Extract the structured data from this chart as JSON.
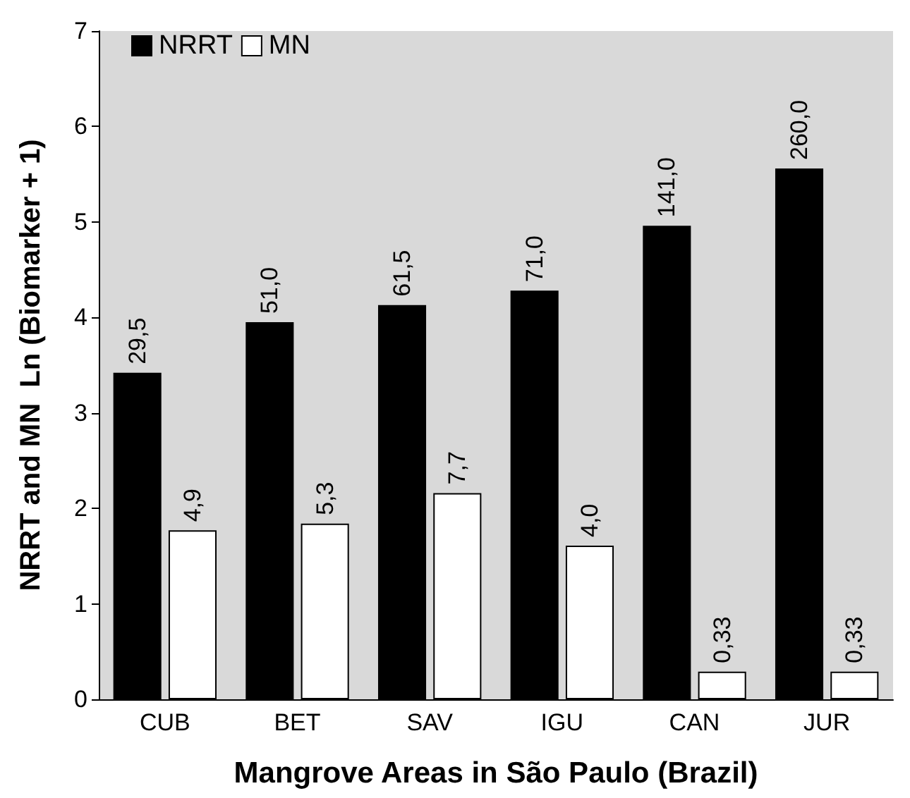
{
  "chart_data": {
    "type": "bar",
    "xlabel": "Mangrove Areas in São Paulo (Brazil)",
    "ylabel": "NRRT and MN  Ln (Biomarker + 1)",
    "categories": [
      "CUB",
      "BET",
      "SAV",
      "IGU",
      "CAN",
      "JUR"
    ],
    "series": [
      {
        "name": "NRRT",
        "color": "#000000",
        "values": [
          3.42,
          3.95,
          4.13,
          4.28,
          4.96,
          5.56
        ]
      },
      {
        "name": "MN",
        "color": "#ffffff",
        "values": [
          1.77,
          1.84,
          2.16,
          1.61,
          0.29,
          0.29
        ]
      }
    ],
    "annotations": [
      {
        "text": "29,5",
        "x": "CUB",
        "y": 3.42
      },
      {
        "text": "51,0",
        "x": "BET",
        "y": 3.95
      },
      {
        "text": "61,5",
        "x": "SAV",
        "y": 4.13
      },
      {
        "text": "71,0",
        "x": "IGU",
        "y": 4.28
      },
      {
        "text": "141,0",
        "x": "CAN",
        "y": 4.96
      },
      {
        "text": "260,0",
        "x": "JUR",
        "y": 5.56
      },
      {
        "text": "4,9",
        "x": "CUB",
        "y": 1.77
      },
      {
        "text": "5,3",
        "x": "BET",
        "y": 1.84
      },
      {
        "text": "7,7",
        "x": "SAV",
        "y": 2.16
      },
      {
        "text": "4,0",
        "x": "IGU",
        "y": 1.61
      },
      {
        "text": "0,33",
        "x": "CAN",
        "y": 0.29
      },
      {
        "text": "0,33",
        "x": "JUR",
        "y": 0.29
      }
    ],
    "ylim": [
      0,
      7
    ],
    "yticks": [
      0,
      1,
      2,
      3,
      4,
      5,
      6,
      7
    ],
    "grid": false,
    "legend": "top left"
  }
}
